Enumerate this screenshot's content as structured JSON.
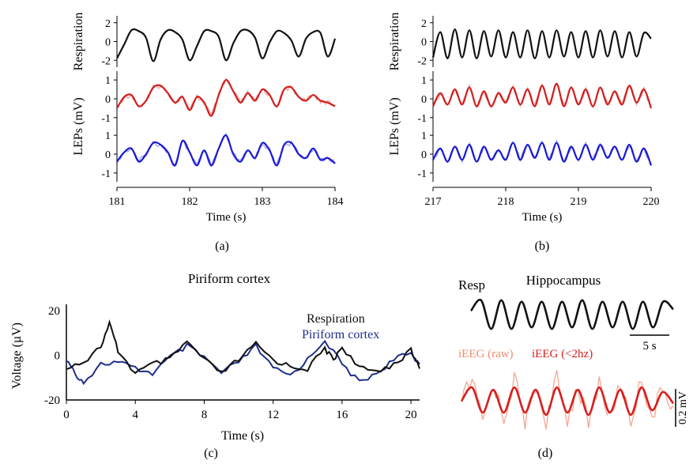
{
  "chart_data": [
    {
      "panel": "(a)",
      "type": "line",
      "xlabel": "Time (s)",
      "xticks": [
        "181",
        "182",
        "183",
        "184"
      ],
      "xlim": [
        181,
        184
      ],
      "subplots": [
        {
          "ylabel": "Respiration",
          "yticks": [
            "2",
            "0",
            "-2"
          ],
          "ylim": [
            -2.4,
            2.4
          ],
          "series": [
            {
              "color": "#111111",
              "x": [
                181.0,
                181.1,
                181.2,
                181.3,
                181.4,
                181.5,
                181.6,
                181.7,
                181.8,
                181.9,
                182.0,
                182.1,
                182.2,
                182.3,
                182.4,
                182.5,
                182.6,
                182.7,
                182.8,
                182.9,
                183.0,
                183.1,
                183.2,
                183.3,
                183.4,
                183.5,
                183.6,
                183.7,
                183.8,
                183.9,
                184.0
              ],
              "y": [
                -1.8,
                -0.3,
                1.2,
                1.1,
                0.4,
                -2.1,
                0.2,
                1.2,
                1.0,
                0.2,
                -2.0,
                -0.5,
                1.1,
                1.1,
                0.5,
                -2.0,
                -0.2,
                1.1,
                1.2,
                0.4,
                -1.8,
                -0.1,
                1.1,
                0.9,
                0.1,
                -1.6,
                0.3,
                1.0,
                0.9,
                -1.6,
                0.3
              ]
            }
          ]
        },
        {
          "ylabel": "LEPs (mV)",
          "yticks": [
            "1",
            "0",
            "-1"
          ],
          "ylim": [
            -1.3,
            1.3
          ],
          "series": [
            {
              "color": "#d31e1e",
              "x": [
                181.0,
                181.1,
                181.2,
                181.3,
                181.4,
                181.5,
                181.6,
                181.7,
                181.8,
                181.9,
                182.0,
                182.1,
                182.2,
                182.3,
                182.4,
                182.5,
                182.6,
                182.7,
                182.8,
                182.9,
                183.0,
                183.1,
                183.2,
                183.3,
                183.4,
                183.5,
                183.6,
                183.7,
                183.8,
                183.9,
                184.0
              ],
              "y": [
                -0.5,
                0.1,
                0.2,
                -0.4,
                -0.1,
                0.6,
                0.7,
                0.3,
                -0.2,
                0.1,
                -0.6,
                0.1,
                -0.2,
                -0.9,
                0.2,
                1.0,
                0.4,
                -0.2,
                0.3,
                -0.1,
                0.5,
                0.2,
                -0.4,
                0.5,
                0.6,
                0.1,
                -0.1,
                0.2,
                -0.1,
                -0.2,
                -0.4
              ]
            }
          ]
        },
        {
          "ylabel": "",
          "yticks": [
            "1",
            "0",
            "-1"
          ],
          "ylim": [
            -1.3,
            1.3
          ],
          "series": [
            {
              "color": "#1a1ad6",
              "x": [
                181.0,
                181.1,
                181.2,
                181.3,
                181.4,
                181.5,
                181.6,
                181.7,
                181.8,
                181.9,
                182.0,
                182.1,
                182.2,
                182.3,
                182.4,
                182.5,
                182.6,
                182.7,
                182.8,
                182.9,
                183.0,
                183.1,
                183.2,
                183.3,
                183.4,
                183.5,
                183.6,
                183.7,
                183.8,
                183.9,
                184.0
              ],
              "y": [
                -0.4,
                0.1,
                0.3,
                -0.4,
                0.0,
                0.6,
                0.5,
                0.1,
                -0.6,
                0.7,
                0.1,
                -0.6,
                0.2,
                -0.6,
                0.3,
                1.0,
                0.0,
                -0.4,
                0.2,
                -0.2,
                0.6,
                0.2,
                -0.6,
                0.5,
                0.6,
                0.0,
                -0.2,
                0.3,
                -0.3,
                -0.2,
                -0.5
              ]
            }
          ]
        }
      ]
    },
    {
      "panel": "(b)",
      "type": "line",
      "xlabel": "Time (s)",
      "xticks": [
        "217",
        "218",
        "219",
        "220"
      ],
      "xlim": [
        217,
        220
      ],
      "subplots": [
        {
          "ylabel": "Respiration",
          "yticks": [
            "2",
            "0",
            "-2"
          ],
          "ylim": [
            -2.4,
            2.4
          ],
          "series": [
            {
              "color": "#111111",
              "x": [
                217.0,
                217.1,
                217.2,
                217.3,
                217.4,
                217.5,
                217.6,
                217.7,
                217.8,
                217.9,
                218.0,
                218.1,
                218.2,
                218.3,
                218.4,
                218.5,
                218.6,
                218.7,
                218.8,
                218.9,
                219.0,
                219.1,
                219.2,
                219.3,
                219.4,
                219.5,
                219.6,
                219.7,
                219.8,
                219.9,
                220.0
              ],
              "y": [
                -1.7,
                1.0,
                -1.8,
                1.3,
                -1.7,
                1.2,
                -1.8,
                1.1,
                -1.6,
                1.2,
                -1.7,
                1.0,
                -1.7,
                1.2,
                -1.8,
                1.1,
                -1.7,
                1.2,
                -1.6,
                1.0,
                -1.7,
                1.1,
                -1.7,
                1.2,
                -1.6,
                1.1,
                -1.7,
                1.0,
                -1.6,
                0.9,
                0.3
              ]
            }
          ]
        },
        {
          "ylabel": "LEPs (mV)",
          "yticks": [
            "1",
            "0",
            "-1"
          ],
          "ylim": [
            -1.3,
            1.3
          ],
          "series": [
            {
              "color": "#d31e1e",
              "x": [
                217.0,
                217.1,
                217.2,
                217.3,
                217.4,
                217.5,
                217.6,
                217.7,
                217.8,
                217.9,
                218.0,
                218.1,
                218.2,
                218.3,
                218.4,
                218.5,
                218.6,
                218.7,
                218.8,
                218.9,
                219.0,
                219.1,
                219.2,
                219.3,
                219.4,
                219.5,
                219.6,
                219.7,
                219.8,
                219.9,
                220.0
              ],
              "y": [
                -0.4,
                0.3,
                -0.3,
                0.5,
                -0.3,
                0.6,
                -0.4,
                0.4,
                -0.4,
                0.3,
                -0.2,
                0.6,
                -0.3,
                0.5,
                -0.4,
                0.7,
                -0.3,
                0.8,
                -0.4,
                0.6,
                -0.3,
                0.5,
                -0.4,
                0.6,
                -0.3,
                0.4,
                -0.3,
                0.7,
                -0.2,
                0.5,
                -0.5
              ]
            }
          ]
        },
        {
          "ylabel": "",
          "yticks": [
            "1",
            "0",
            "-1"
          ],
          "ylim": [
            -1.3,
            1.3
          ],
          "series": [
            {
              "color": "#1a1ad6",
              "x": [
                217.0,
                217.1,
                217.2,
                217.3,
                217.4,
                217.5,
                217.6,
                217.7,
                217.8,
                217.9,
                218.0,
                218.1,
                218.2,
                218.3,
                218.4,
                218.5,
                218.6,
                218.7,
                218.8,
                218.9,
                219.0,
                219.1,
                219.2,
                219.3,
                219.4,
                219.5,
                219.6,
                219.7,
                219.8,
                219.9,
                220.0
              ],
              "y": [
                -0.3,
                0.3,
                -0.4,
                0.4,
                -0.3,
                0.5,
                -0.4,
                0.4,
                -0.3,
                0.2,
                -0.3,
                0.6,
                -0.3,
                0.5,
                -0.2,
                0.6,
                -0.3,
                0.6,
                -0.4,
                0.4,
                -0.3,
                0.5,
                -0.3,
                0.5,
                -0.2,
                0.4,
                -0.3,
                0.5,
                -0.4,
                0.3,
                -0.6
              ]
            }
          ]
        }
      ]
    },
    {
      "panel": "(c)",
      "type": "line",
      "title": "Piriform cortex",
      "xlabel": "Time (s)",
      "ylabel": "Voltage (µV)",
      "xticks": [
        "0",
        "4",
        "8",
        "12",
        "16",
        "20"
      ],
      "yticks": [
        "20",
        "0",
        "-20"
      ],
      "xlim": [
        0,
        20.5
      ],
      "ylim": [
        -20,
        20
      ],
      "legend": [
        "Respiration",
        "Piriform cortex"
      ],
      "series": [
        {
          "name": "Respiration",
          "color": "#111111",
          "x": [
            0,
            1,
            2,
            2.5,
            3,
            4,
            5,
            6,
            7,
            8,
            9,
            10,
            11,
            12,
            13,
            14,
            15,
            15.5,
            16,
            17,
            18,
            19,
            20,
            20.5
          ],
          "y": [
            -5,
            -3,
            4,
            14,
            2,
            -8,
            -4,
            -2,
            6,
            -2,
            -8,
            -2,
            5,
            -2,
            -5,
            -6,
            3,
            -2,
            4,
            -6,
            -7,
            -4,
            2,
            -6
          ]
        },
        {
          "name": "Piriform cortex",
          "color": "#1f2e8c",
          "x": [
            0,
            0.5,
            1,
            2,
            3,
            4,
            5,
            6,
            7,
            8,
            9,
            10,
            11,
            12,
            13,
            14,
            15,
            16,
            17,
            18,
            19,
            20,
            20.5
          ],
          "y": [
            -2,
            -8,
            -12,
            -4,
            -3,
            -6,
            -8,
            -1,
            4,
            -1,
            -8,
            -3,
            4,
            -6,
            -9,
            -2,
            7,
            -4,
            -12,
            -8,
            -2,
            1,
            -4
          ]
        }
      ]
    },
    {
      "panel": "(d)",
      "type": "line",
      "title": "Hippocampus",
      "resp_label": "Resp",
      "scale_time": "5 s",
      "scale_volt": "0.2 mV",
      "legend": [
        "iEEG (raw)",
        "iEEG (<2hz)"
      ],
      "series": [
        {
          "name": "Resp",
          "color": "#111111",
          "x": [
            0,
            1,
            2,
            3,
            4,
            5,
            6,
            7,
            8,
            9,
            10,
            11,
            12,
            13,
            14,
            15,
            16,
            17,
            18,
            19,
            20
          ],
          "y": [
            0.2,
            0.9,
            -1.0,
            0.9,
            -1.0,
            0.8,
            -0.9,
            0.8,
            -1.0,
            0.8,
            -0.9,
            0.9,
            -1.0,
            0.8,
            -0.9,
            0.8,
            -1.0,
            0.8,
            -0.9,
            0.8,
            0.3
          ]
        },
        {
          "name": "iEEG (raw)",
          "color": "#f08a6c",
          "x": [
            0,
            1,
            2,
            3,
            4,
            5,
            6,
            7,
            8,
            9,
            10,
            11,
            12,
            13,
            14,
            15,
            16,
            17,
            18,
            19,
            20
          ],
          "y": [
            0.1,
            0.9,
            -0.9,
            0.8,
            -0.8,
            1.0,
            -0.9,
            0.7,
            -0.9,
            1.0,
            -0.8,
            0.7,
            -1.0,
            0.9,
            -0.8,
            0.8,
            -0.9,
            1.0,
            -0.7,
            0.6,
            -0.2
          ]
        },
        {
          "name": "iEEG (<2hz)",
          "color": "#d81e1e",
          "x": [
            0,
            1,
            2,
            3,
            4,
            5,
            6,
            7,
            8,
            9,
            10,
            11,
            12,
            13,
            14,
            15,
            16,
            17,
            18,
            19,
            20
          ],
          "y": [
            0.0,
            0.6,
            -0.5,
            0.5,
            -0.5,
            0.6,
            -0.5,
            0.5,
            -0.6,
            0.6,
            -0.5,
            0.5,
            -0.6,
            0.6,
            -0.5,
            0.5,
            -0.6,
            0.6,
            -0.4,
            0.4,
            -0.1
          ]
        }
      ]
    }
  ],
  "panel_labels": [
    "(a)",
    "(b)",
    "(c)",
    "(d)"
  ]
}
